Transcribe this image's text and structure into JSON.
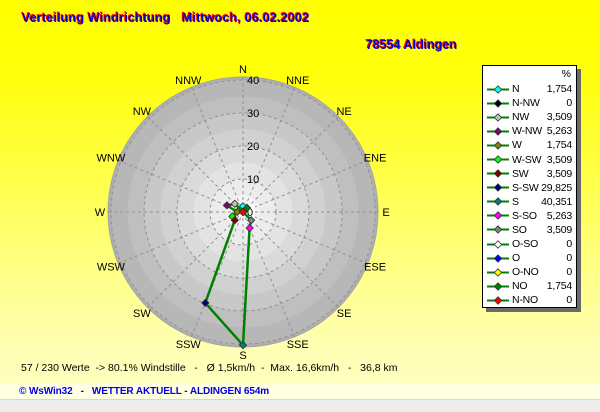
{
  "header": {
    "title": "Verteilung Windrichtung   Mittwoch, 06.02.2002",
    "station": "78554 Aldingen",
    "title_color": "#0000CC",
    "title_shadow_color": "#FF0000"
  },
  "chart_data": {
    "type": "line",
    "subtype": "polar-windrose",
    "title": "Verteilung Windrichtung",
    "unit": "%",
    "categories": [
      "N",
      "N-NW",
      "NW",
      "W-NW",
      "W",
      "W-SW",
      "SW",
      "S-SW",
      "S",
      "S-SO",
      "SO",
      "O-SO",
      "O",
      "O-NO",
      "NO",
      "N-NO"
    ],
    "values": [
      1.754,
      0,
      3.509,
      5.263,
      1.754,
      3.509,
      3.509,
      29.825,
      40.351,
      5.263,
      3.509,
      0,
      0,
      0,
      1.754,
      0
    ],
    "display_values": [
      "1,754",
      "0",
      "3,509",
      "5,263",
      "1,754",
      "3,509",
      "3,509",
      "29,825",
      "40,351",
      "5,263",
      "3,509",
      "0",
      "0",
      "0",
      "1,754",
      "0"
    ],
    "marker_colors": [
      "#00FFFF",
      "#000000",
      "#C0C0C0",
      "#800080",
      "#808000",
      "#00FF00",
      "#800000",
      "#000080",
      "#008080",
      "#FF00FF",
      "#808080",
      "#FFFFFF",
      "#0000FF",
      "#FFFF00",
      "#008000",
      "#FF0000"
    ],
    "compass_labels": [
      "N",
      "NNE",
      "NE",
      "ENE",
      "E",
      "ESE",
      "SE",
      "SSE",
      "S",
      "SSW",
      "SW",
      "WSW",
      "W",
      "WNW",
      "NW",
      "NNW"
    ],
    "radial_ticks": [
      0,
      10,
      20,
      30,
      40
    ],
    "rlim": [
      0,
      40
    ],
    "grid": "dashed",
    "legend_position": "right",
    "line_color": "#008000"
  },
  "footer": {
    "stats": "57 / 230 Werte  -> 80.1% Windstille   -   Ø 1,5km/h  -  Max. 16,6km/h   -   36,8 km",
    "statusbar": "© WsWin32   -   WETTER AKTUELL - ALDINGEN 654m"
  }
}
